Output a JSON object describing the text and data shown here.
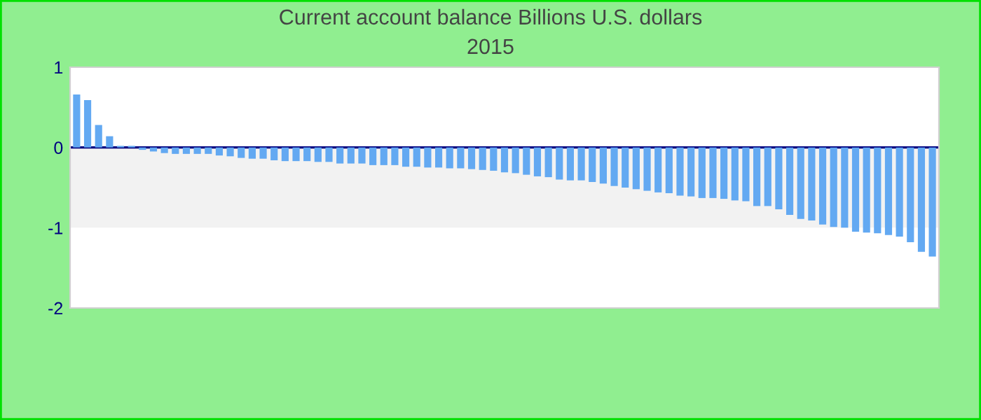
{
  "chart_data": {
    "type": "bar",
    "title": "Current account balance Billions U.S. dollars",
    "subtitle": "2015",
    "categories": [
      null,
      null,
      null,
      null,
      null,
      null,
      null,
      null,
      null,
      null,
      null,
      null,
      null,
      null,
      null,
      null,
      null,
      null,
      null,
      null,
      null,
      null,
      null,
      null,
      null,
      null,
      null,
      null,
      null,
      null,
      null,
      null,
      null,
      null,
      null,
      null,
      null,
      null,
      null,
      null,
      null,
      null,
      null,
      null,
      null,
      null,
      null,
      null,
      null,
      null,
      null,
      null,
      null,
      null,
      null,
      null,
      null,
      null,
      null,
      null,
      null,
      null,
      null,
      null,
      null,
      null,
      null,
      null,
      null,
      null,
      null,
      null,
      null,
      null,
      null,
      null,
      null,
      null,
      null
    ],
    "values": [
      0.66,
      0.59,
      0.28,
      0.14,
      0.02,
      0.02,
      -0.03,
      -0.05,
      -0.07,
      -0.08,
      -0.08,
      -0.08,
      -0.08,
      -0.1,
      -0.11,
      -0.13,
      -0.14,
      -0.14,
      -0.16,
      -0.17,
      -0.17,
      -0.17,
      -0.18,
      -0.18,
      -0.2,
      -0.2,
      -0.2,
      -0.22,
      -0.22,
      -0.22,
      -0.24,
      -0.24,
      -0.25,
      -0.25,
      -0.26,
      -0.26,
      -0.27,
      -0.28,
      -0.29,
      -0.31,
      -0.32,
      -0.34,
      -0.36,
      -0.37,
      -0.4,
      -0.41,
      -0.41,
      -0.43,
      -0.45,
      -0.48,
      -0.5,
      -0.52,
      -0.54,
      -0.56,
      -0.57,
      -0.6,
      -0.61,
      -0.63,
      -0.63,
      -0.64,
      -0.66,
      -0.67,
      -0.73,
      -0.73,
      -0.77,
      -0.84,
      -0.89,
      -0.91,
      -0.96,
      -0.99,
      -1.0,
      -1.05,
      -1.06,
      -1.07,
      -1.09,
      -1.11,
      -1.18,
      -1.3,
      -1.36
    ],
    "color": "#63a9f2",
    "ylim": [
      -2,
      1
    ],
    "yticks": [
      -2,
      -1,
      0,
      1
    ],
    "bands": [
      {
        "axis": "y",
        "from": -1,
        "to": 0,
        "color": "#f2f2f2"
      }
    ],
    "ref_lines": [
      {
        "axis": "y",
        "value": 0,
        "color": "#000080"
      }
    ],
    "tick_labels": "y",
    "grid": false,
    "legend": false
  }
}
